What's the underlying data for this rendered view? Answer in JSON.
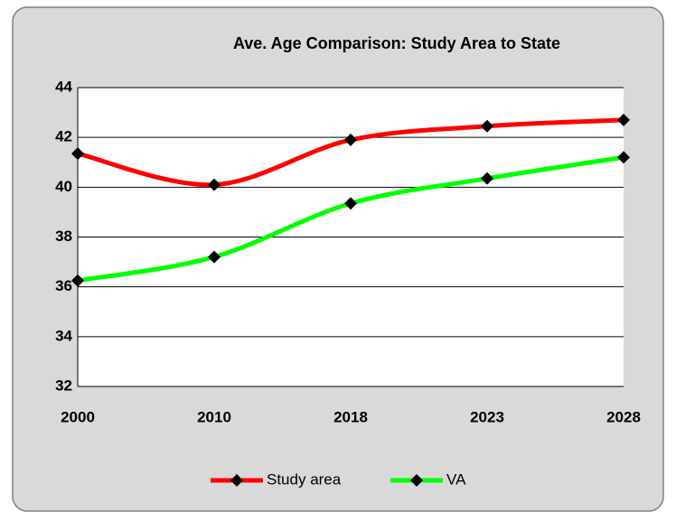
{
  "chart_data": {
    "type": "line",
    "title": "Ave. Age Comparison: Study Area to State",
    "categories": [
      "2000",
      "2010",
      "2018",
      "2023",
      "2028"
    ],
    "series": [
      {
        "name": "Study area",
        "color": "#ff0000",
        "values": [
          41.35,
          40.1,
          41.9,
          42.45,
          42.7
        ]
      },
      {
        "name": "VA",
        "color": "#00ff00",
        "values": [
          36.25,
          37.2,
          39.35,
          40.35,
          41.2
        ]
      }
    ],
    "ylim": [
      32,
      44
    ],
    "yticks": [
      32,
      34,
      36,
      38,
      40,
      42,
      44
    ],
    "grid": true,
    "smooth": true,
    "marker_color": "#000000",
    "legend": "bottom"
  }
}
